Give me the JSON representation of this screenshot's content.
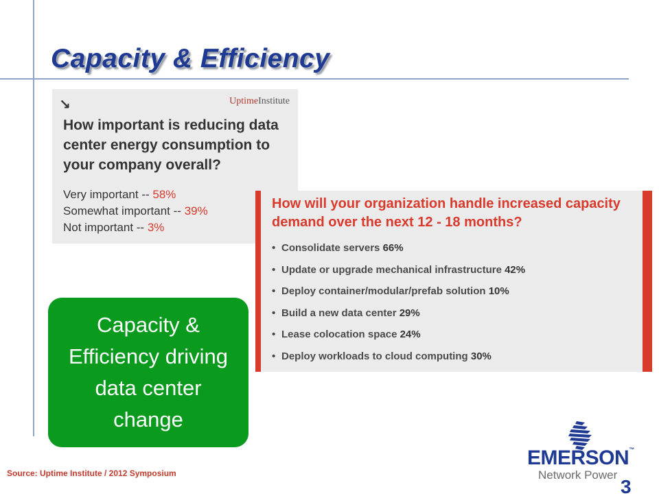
{
  "slide": {
    "title": "Capacity & Efficiency",
    "page_number": "3",
    "source": "Source: Uptime Institute / 2012 Symposium"
  },
  "uptime_panel": {
    "icon": "arrow-down-right-icon",
    "brand_bold": "Uptime",
    "brand_thin": "Institute",
    "question": "How important is reducing data center energy consumption to your company overall?",
    "answers": [
      {
        "label": "Very important  -- ",
        "value": "58%"
      },
      {
        "label": "Somewhat important -- ",
        "value": "39%"
      },
      {
        "label": "Not important -- ",
        "value": "3%"
      }
    ]
  },
  "survey_panel": {
    "question": "How will your organization handle increased capacity demand over the next 12 - 18 months?",
    "bullet": "•",
    "items": [
      {
        "label": "Consolidate servers ",
        "value": "66%"
      },
      {
        "label": "Update or upgrade mechanical infrastructure ",
        "value": "42%"
      },
      {
        "label": "Deploy container/modular/prefab solution ",
        "value": "10%"
      },
      {
        "label": "Build a new data center ",
        "value": "29%"
      },
      {
        "label": "Lease colocation space ",
        "value": "24%"
      },
      {
        "label": "Deploy workloads to cloud computing ",
        "value": "30%"
      }
    ],
    "accent_color": "#d83a2c"
  },
  "callout": {
    "text": "Capacity & Efficiency driving data center change",
    "color": "#0a9a1e"
  },
  "logo": {
    "wordmark": "EMERSON",
    "trademark": "™",
    "subtitle": "Network Power",
    "icon": "emerson-logo-icon"
  },
  "colors": {
    "title": "#1f3a93",
    "rule": "#8fa3c7",
    "source": "#c0392b"
  }
}
